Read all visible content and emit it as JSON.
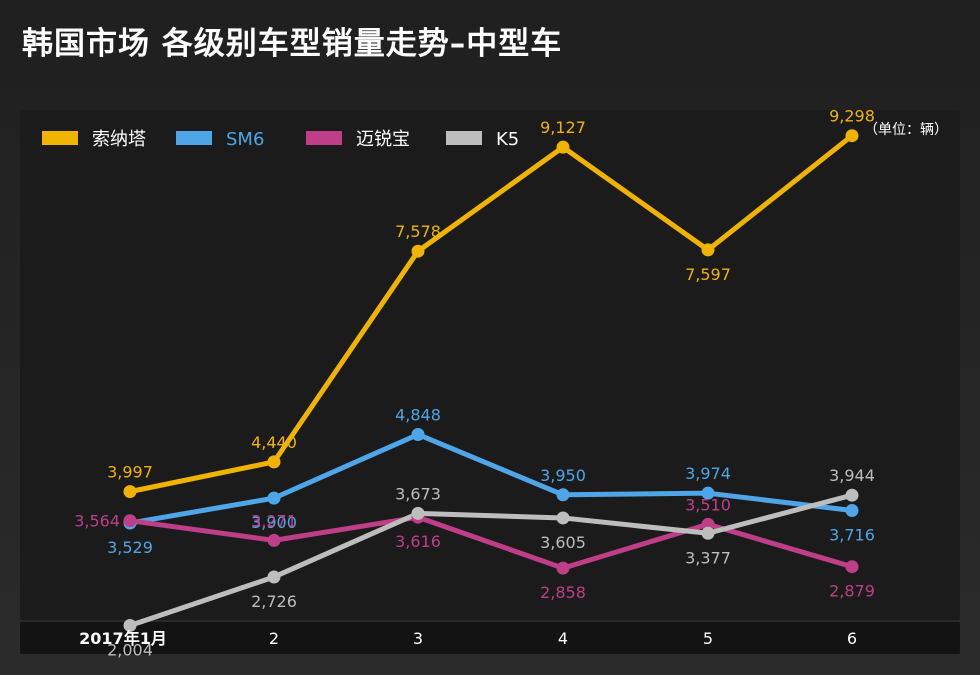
{
  "page": {
    "title": "韩国市场 各级别车型销量走势–中型车"
  },
  "chart_data": {
    "type": "line",
    "title": "韩国市场 各级别车型销量走势–中型车",
    "unit": "（单位：辆）",
    "categories": [
      "2017年1月",
      "2",
      "3",
      "4",
      "5",
      "6"
    ],
    "ylim": [
      0,
      10500
    ],
    "grid": false,
    "legend_position": "top-left",
    "series": [
      {
        "name": "索纳塔",
        "color": "#f0b400",
        "values": [
          3997,
          4440,
          7578,
          9127,
          7597,
          9298
        ],
        "labels": [
          "3,997",
          "4,440",
          "7,578",
          "9,127",
          "7,597",
          "9,298"
        ]
      },
      {
        "name": "SM6",
        "color": "#4ea6e8",
        "values": [
          3529,
          3900,
          4848,
          3950,
          3974,
          3716
        ],
        "labels": [
          "3,529",
          "3,900",
          "4,848",
          "3,950",
          "3,974",
          "3,716"
        ]
      },
      {
        "name": "迈锐宝",
        "color": "#bf3e88",
        "values": [
          3564,
          3271,
          3616,
          2858,
          3510,
          2879
        ],
        "labels": [
          "3,564",
          "3,271",
          "3,616",
          "2,858",
          "3,510",
          "2,879"
        ]
      },
      {
        "name": "K5",
        "color": "#bdbdbd",
        "values": [
          2004,
          2726,
          3673,
          3605,
          3377,
          3944
        ],
        "labels": [
          "2,004",
          "2,726",
          "3,673",
          "3,605",
          "3,377",
          "3,944"
        ]
      }
    ]
  }
}
